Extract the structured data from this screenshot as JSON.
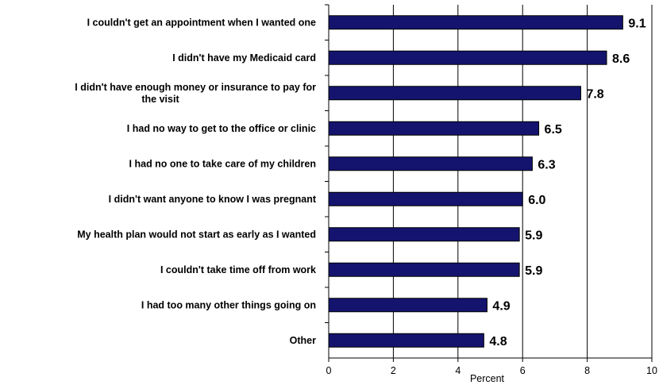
{
  "chart_data": {
    "type": "bar",
    "orientation": "horizontal",
    "categories": [
      [
        "I couldn't get an appointment when I wanted one"
      ],
      [
        "I didn't have my Medicaid card"
      ],
      [
        "I didn't have enough money or insurance to pay for",
        "the visit"
      ],
      [
        "I had no way to get to the office or clinic"
      ],
      [
        "I had no one to take care of my children"
      ],
      [
        "I didn't want anyone to know I was pregnant"
      ],
      [
        "My health plan would not start as early as I wanted"
      ],
      [
        "I couldn't take time off from work"
      ],
      [
        "I had too many other things going on"
      ],
      [
        "Other"
      ]
    ],
    "values": [
      9.1,
      8.6,
      7.8,
      6.5,
      6.3,
      6.0,
      5.9,
      5.9,
      4.9,
      4.8
    ],
    "value_labels": [
      "9.1",
      "8.6",
      "7.8",
      "6.5",
      "6.3",
      "6.0",
      "5.9",
      "5.9",
      "4.9",
      "4.8"
    ],
    "xlabel": "Percent",
    "xlim": [
      0,
      10
    ],
    "xticks": [
      0,
      2,
      4,
      6,
      8,
      10
    ],
    "grid": "vertical",
    "bar_color": "#14146e",
    "bar_border": "#000000"
  }
}
